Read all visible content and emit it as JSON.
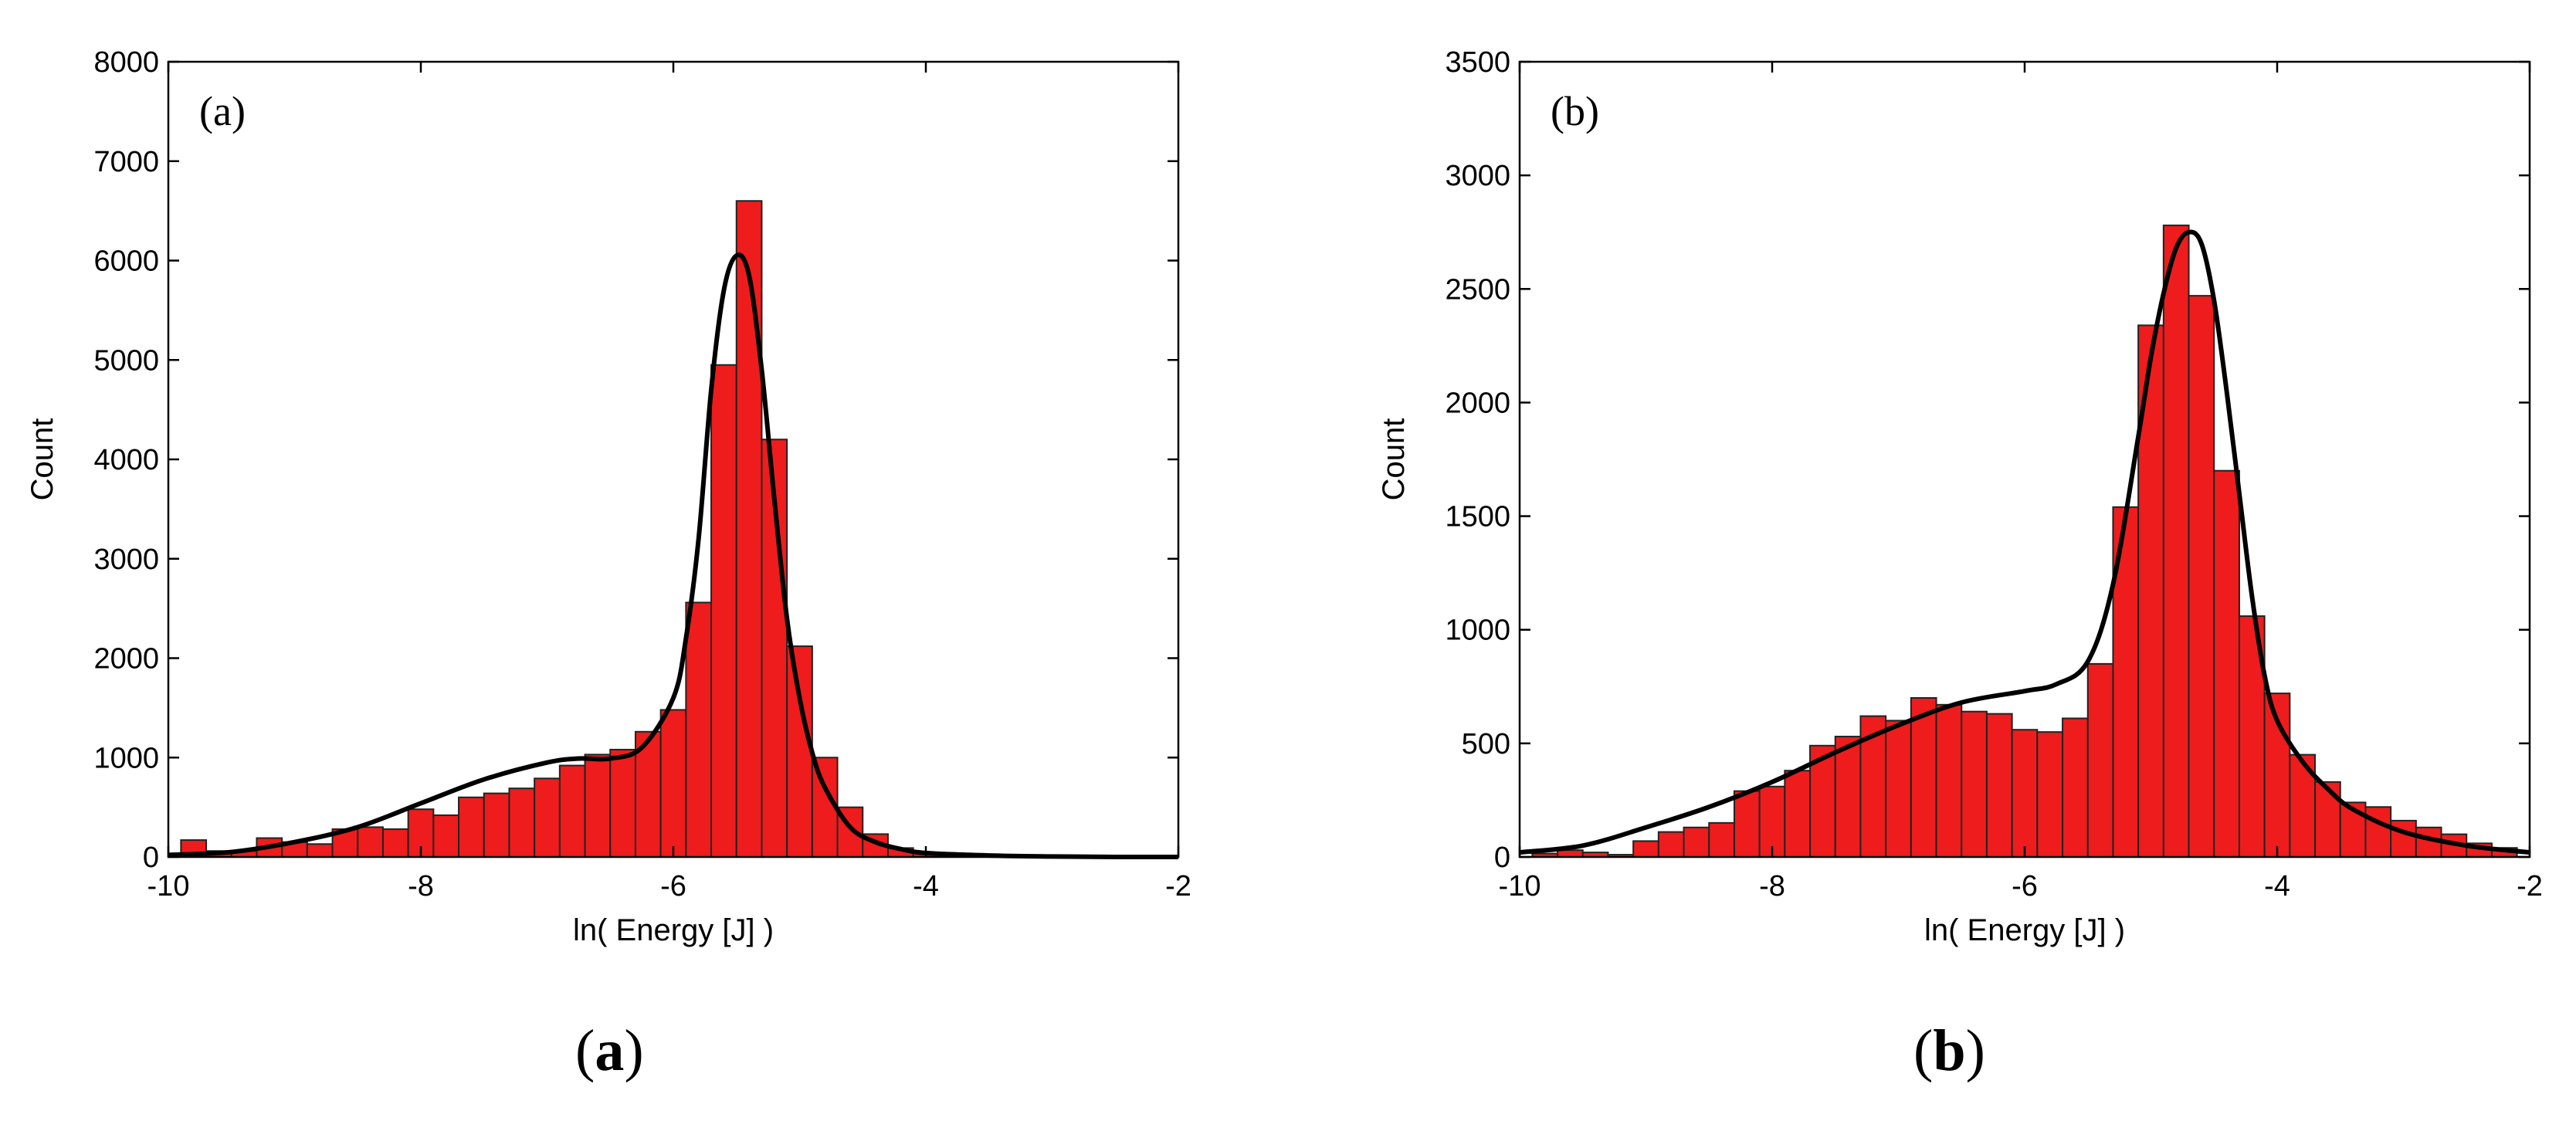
{
  "chart_data": [
    {
      "type": "bar",
      "panel_label": "(a)",
      "caption": {
        "open": "(",
        "letter": "a",
        "close": ")"
      },
      "xlabel": "ln( Energy [J] )",
      "ylabel": "Count",
      "xlim": [
        -10,
        -2
      ],
      "ylim": [
        0,
        8000
      ],
      "xticks": [
        -10,
        -8,
        -6,
        -4,
        -2
      ],
      "yticks": [
        0,
        1000,
        2000,
        3000,
        4000,
        5000,
        6000,
        7000,
        8000
      ],
      "bin_width": 0.2,
      "bins": [
        {
          "x": -9.8,
          "y": 170
        },
        {
          "x": -9.6,
          "y": 60
        },
        {
          "x": -9.4,
          "y": 60
        },
        {
          "x": -9.2,
          "y": 190
        },
        {
          "x": -9.0,
          "y": 150
        },
        {
          "x": -8.8,
          "y": 130
        },
        {
          "x": -8.6,
          "y": 280
        },
        {
          "x": -8.4,
          "y": 300
        },
        {
          "x": -8.2,
          "y": 280
        },
        {
          "x": -8.0,
          "y": 480
        },
        {
          "x": -7.8,
          "y": 420
        },
        {
          "x": -7.6,
          "y": 600
        },
        {
          "x": -7.4,
          "y": 640
        },
        {
          "x": -7.2,
          "y": 690
        },
        {
          "x": -7.0,
          "y": 790
        },
        {
          "x": -6.8,
          "y": 920
        },
        {
          "x": -6.6,
          "y": 1030
        },
        {
          "x": -6.4,
          "y": 1080
        },
        {
          "x": -6.2,
          "y": 1260
        },
        {
          "x": -6.0,
          "y": 1480
        },
        {
          "x": -5.8,
          "y": 2560
        },
        {
          "x": -5.6,
          "y": 4950
        },
        {
          "x": -5.4,
          "y": 6600
        },
        {
          "x": -5.2,
          "y": 4200
        },
        {
          "x": -5.0,
          "y": 2120
        },
        {
          "x": -4.8,
          "y": 1000
        },
        {
          "x": -4.6,
          "y": 500
        },
        {
          "x": -4.4,
          "y": 230
        },
        {
          "x": -4.2,
          "y": 90
        },
        {
          "x": -4.0,
          "y": 40
        }
      ],
      "fit_curve": {
        "x": [
          -10,
          -9.5,
          -9,
          -8.5,
          -8,
          -7.5,
          -7,
          -6.75,
          -6.5,
          -6.25,
          -6,
          -5.9,
          -5.8,
          -5.7,
          -5.6,
          -5.5,
          -5.4,
          -5.3,
          -5.2,
          -5.1,
          -5,
          -4.9,
          -4.8,
          -4.6,
          -4.4,
          -4.2,
          -4,
          -3.5,
          -3,
          -2.5,
          -2
        ],
        "y": [
          20,
          50,
          150,
          300,
          540,
          780,
          950,
          990,
          990,
          1100,
          1600,
          2200,
          3200,
          4700,
          5700,
          6050,
          5850,
          4900,
          3600,
          2400,
          1600,
          1050,
          700,
          300,
          150,
          80,
          40,
          15,
          5,
          0,
          0
        ]
      },
      "colors": {
        "bar_fill": "#ee1c1c",
        "bar_edge": "#222222",
        "curve": "#000000"
      }
    },
    {
      "type": "bar",
      "panel_label": "(b)",
      "caption": {
        "open": "(",
        "letter": "b",
        "close": ")"
      },
      "xlabel": "ln( Energy [J] )",
      "ylabel": "Count",
      "xlim": [
        -10,
        -2
      ],
      "ylim": [
        0,
        3500
      ],
      "xticks": [
        -10,
        -8,
        -6,
        -4,
        -2
      ],
      "yticks": [
        0,
        500,
        1000,
        1500,
        2000,
        2500,
        3000,
        3500
      ],
      "bin_width": 0.2,
      "bins": [
        {
          "x": -9.8,
          "y": 15
        },
        {
          "x": -9.6,
          "y": 30
        },
        {
          "x": -9.4,
          "y": 20
        },
        {
          "x": -9.2,
          "y": 10
        },
        {
          "x": -9.0,
          "y": 70
        },
        {
          "x": -8.8,
          "y": 110
        },
        {
          "x": -8.6,
          "y": 130
        },
        {
          "x": -8.4,
          "y": 150
        },
        {
          "x": -8.2,
          "y": 290
        },
        {
          "x": -8.0,
          "y": 310
        },
        {
          "x": -7.8,
          "y": 380
        },
        {
          "x": -7.6,
          "y": 490
        },
        {
          "x": -7.4,
          "y": 530
        },
        {
          "x": -7.2,
          "y": 620
        },
        {
          "x": -7.0,
          "y": 600
        },
        {
          "x": -6.8,
          "y": 700
        },
        {
          "x": -6.6,
          "y": 670
        },
        {
          "x": -6.4,
          "y": 640
        },
        {
          "x": -6.2,
          "y": 630
        },
        {
          "x": -6.0,
          "y": 560
        },
        {
          "x": -5.8,
          "y": 550
        },
        {
          "x": -5.6,
          "y": 610
        },
        {
          "x": -5.4,
          "y": 850
        },
        {
          "x": -5.2,
          "y": 1540
        },
        {
          "x": -5.0,
          "y": 2340
        },
        {
          "x": -4.8,
          "y": 2780
        },
        {
          "x": -4.6,
          "y": 2470
        },
        {
          "x": -4.4,
          "y": 1700
        },
        {
          "x": -4.2,
          "y": 1060
        },
        {
          "x": -4.0,
          "y": 720
        },
        {
          "x": -3.8,
          "y": 450
        },
        {
          "x": -3.6,
          "y": 330
        },
        {
          "x": -3.4,
          "y": 240
        },
        {
          "x": -3.2,
          "y": 220
        },
        {
          "x": -3.0,
          "y": 160
        },
        {
          "x": -2.8,
          "y": 130
        },
        {
          "x": -2.6,
          "y": 100
        },
        {
          "x": -2.4,
          "y": 60
        },
        {
          "x": -2.2,
          "y": 40
        }
      ],
      "fit_curve": {
        "x": [
          -10,
          -9.5,
          -9,
          -8.5,
          -8,
          -7.5,
          -7,
          -6.5,
          -6,
          -5.75,
          -5.5,
          -5.3,
          -5.1,
          -5,
          -4.9,
          -4.8,
          -4.7,
          -4.6,
          -4.5,
          -4.4,
          -4.3,
          -4.2,
          -4.1,
          -4,
          -3.8,
          -3.6,
          -3.4,
          -3,
          -2.5,
          -2
        ],
        "y": [
          20,
          50,
          130,
          220,
          330,
          460,
          580,
          680,
          730,
          760,
          860,
          1200,
          1850,
          2200,
          2480,
          2680,
          2750,
          2700,
          2450,
          2050,
          1600,
          1150,
          800,
          600,
          420,
          300,
          210,
          110,
          50,
          20
        ]
      },
      "colors": {
        "bar_fill": "#ee1c1c",
        "bar_edge": "#222222",
        "curve": "#000000"
      }
    }
  ]
}
